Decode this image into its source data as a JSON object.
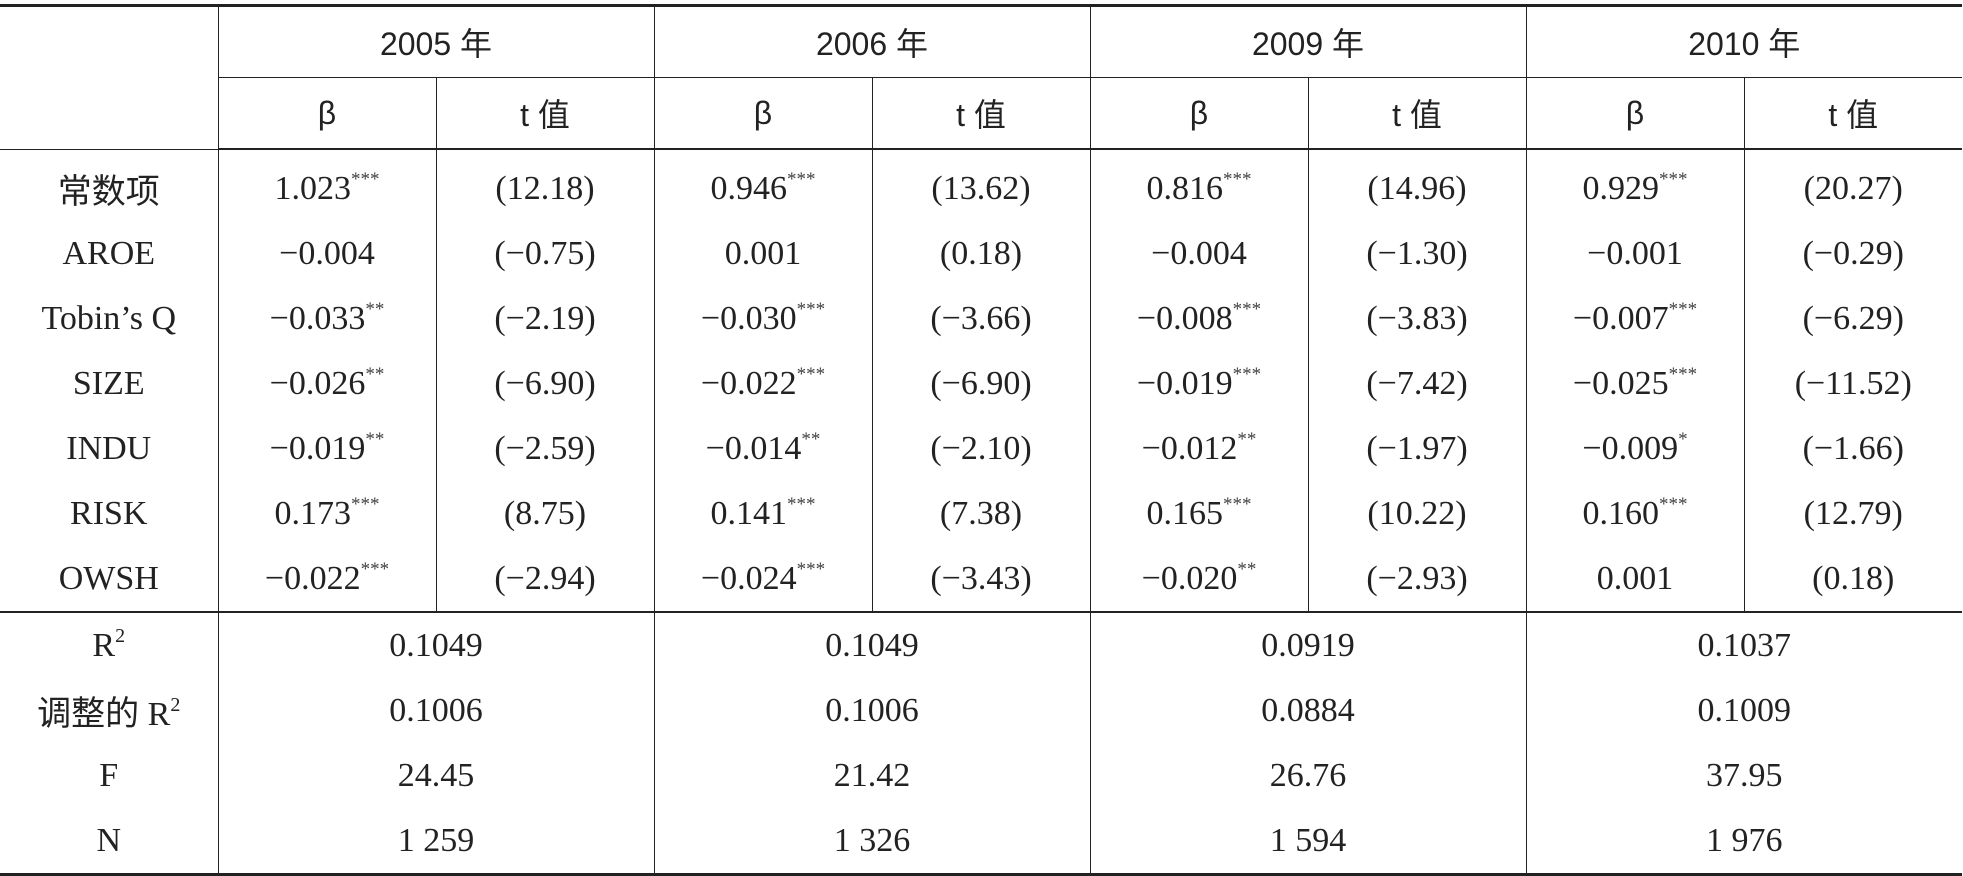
{
  "table": {
    "years": [
      "2005 年",
      "2006 年",
      "2009 年",
      "2010 年"
    ],
    "sub_headers": {
      "beta": "β",
      "t": "t 值"
    },
    "rows": [
      {
        "label": "常数项",
        "cells": [
          {
            "b": "1.023",
            "s": "***",
            "t": "(12.18)"
          },
          {
            "b": "0.946",
            "s": "***",
            "t": "(13.62)"
          },
          {
            "b": "0.816",
            "s": "***",
            "t": "(14.96)"
          },
          {
            "b": "0.929",
            "s": "***",
            "t": "(20.27)"
          }
        ]
      },
      {
        "label": "AROE",
        "cells": [
          {
            "b": "−0.004",
            "s": "",
            "t": "(−0.75)"
          },
          {
            "b": "0.001",
            "s": "",
            "t": "(0.18)"
          },
          {
            "b": "−0.004",
            "s": "",
            "t": "(−1.30)"
          },
          {
            "b": "−0.001",
            "s": "",
            "t": "(−0.29)"
          }
        ]
      },
      {
        "label": "Tobin’s Q",
        "cells": [
          {
            "b": "−0.033",
            "s": "**",
            "t": "(−2.19)"
          },
          {
            "b": "−0.030",
            "s": "***",
            "t": "(−3.66)"
          },
          {
            "b": "−0.008",
            "s": "***",
            "t": "(−3.83)"
          },
          {
            "b": "−0.007",
            "s": "***",
            "t": "(−6.29)"
          }
        ]
      },
      {
        "label": "SIZE",
        "cells": [
          {
            "b": "−0.026",
            "s": "**",
            "t": "(−6.90)"
          },
          {
            "b": "−0.022",
            "s": "***",
            "t": "(−6.90)"
          },
          {
            "b": "−0.019",
            "s": "***",
            "t": "(−7.42)"
          },
          {
            "b": "−0.025",
            "s": "***",
            "t": "(−11.52)"
          }
        ]
      },
      {
        "label": "INDU",
        "cells": [
          {
            "b": "−0.019",
            "s": "**",
            "t": "(−2.59)"
          },
          {
            "b": "−0.014",
            "s": "**",
            "t": "(−2.10)"
          },
          {
            "b": "−0.012",
            "s": "**",
            "t": "(−1.97)"
          },
          {
            "b": "−0.009",
            "s": "*",
            "t": "(−1.66)"
          }
        ]
      },
      {
        "label": "RISK",
        "cells": [
          {
            "b": "0.173",
            "s": "***",
            "t": "(8.75)"
          },
          {
            "b": "0.141",
            "s": "***",
            "t": "(7.38)"
          },
          {
            "b": "0.165",
            "s": "***",
            "t": "(10.22)"
          },
          {
            "b": "0.160",
            "s": "***",
            "t": "(12.79)"
          }
        ]
      },
      {
        "label": "OWSH",
        "cells": [
          {
            "b": "−0.022",
            "s": "***",
            "t": "(−2.94)"
          },
          {
            "b": "−0.024",
            "s": "***",
            "t": "(−3.43)"
          },
          {
            "b": "−0.020",
            "s": "**",
            "t": "(−2.93)"
          },
          {
            "b": "0.001",
            "s": "",
            "t": "(0.18)"
          }
        ]
      }
    ],
    "stats": [
      {
        "label": "R",
        "sup": "2",
        "values": [
          "0.1049",
          "0.1049",
          "0.0919",
          "0.1037"
        ]
      },
      {
        "label": "调整的 R",
        "sup": "2",
        "values": [
          "0.1006",
          "0.1006",
          "0.0884",
          "0.1009"
        ]
      },
      {
        "label": "F",
        "sup": "",
        "values": [
          "24.45",
          "21.42",
          "26.76",
          "37.95"
        ]
      },
      {
        "label": "N",
        "sup": "",
        "values": [
          "1 259",
          "1 326",
          "1 594",
          "1 976"
        ]
      }
    ]
  }
}
